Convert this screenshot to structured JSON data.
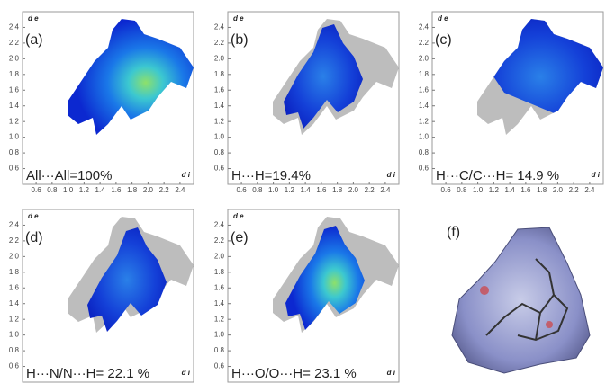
{
  "chart_data": [
    {
      "type": "scatter",
      "label": "(a)",
      "caption": "All···All=100%",
      "ylabel": "d e",
      "xlabel": "d i",
      "xlim": [
        0.43,
        2.57
      ],
      "ylim": [
        0.4,
        2.6
      ],
      "xticks": [
        0.6,
        0.8,
        {
          "value": 1,
          "label": "1.0"
        },
        1.2,
        1.4,
        1.6,
        1.8,
        {
          "value": 2,
          "label": "2.0"
        },
        2.2,
        2.4
      ],
      "yticks": [
        0.6,
        0.8,
        {
          "value": 1,
          "label": "1.0"
        },
        1.2,
        1.4,
        1.6,
        1.8,
        {
          "value": 2,
          "label": "2.0"
        },
        2.2,
        2.4
      ]
    },
    {
      "type": "scatter",
      "label": "(b)",
      "caption": "H···H=19.4%",
      "ylabel": "d e",
      "xlabel": "d i",
      "xlim": [
        0.43,
        2.57
      ],
      "ylim": [
        0.4,
        2.6
      ],
      "xticks": [
        0.6,
        0.8,
        {
          "value": 1,
          "label": "1.0"
        },
        1.2,
        1.4,
        1.6,
        1.8,
        {
          "value": 2,
          "label": "2.0"
        },
        2.2,
        2.4
      ],
      "yticks": [
        0.6,
        0.8,
        {
          "value": 1,
          "label": "1.0"
        },
        1.2,
        1.4,
        1.6,
        1.8,
        {
          "value": 2,
          "label": "2.0"
        },
        2.2,
        2.4
      ]
    },
    {
      "type": "scatter",
      "label": "(c)",
      "caption": "H···C/C···H= 14.9 %",
      "ylabel": "d e",
      "xlabel": "d i",
      "xlim": [
        0.43,
        2.57
      ],
      "ylim": [
        0.4,
        2.6
      ],
      "xticks": [
        0.6,
        0.8,
        {
          "value": 1,
          "label": "1.0"
        },
        1.2,
        1.4,
        1.6,
        1.8,
        {
          "value": 2,
          "label": "2.0"
        },
        2.2,
        2.4
      ],
      "yticks": [
        0.6,
        0.8,
        {
          "value": 1,
          "label": "1.0"
        },
        1.2,
        1.4,
        1.6,
        1.8,
        {
          "value": 2,
          "label": "2.0"
        },
        2.2,
        2.4
      ]
    },
    {
      "type": "scatter",
      "label": "(d)",
      "caption": "H···N/N···H= 22.1 %",
      "ylabel": "d e",
      "xlabel": "d i",
      "ylim": [
        0.4,
        2.6
      ],
      "yticks": [
        0.6,
        0.8,
        {
          "value": 1,
          "label": "1.0"
        },
        1.2,
        1.4,
        1.6,
        1.8,
        {
          "value": 2,
          "label": "2.0"
        },
        2.2,
        2.4
      ]
    },
    {
      "type": "scatter",
      "label": "(e)",
      "caption": "H···O/O···H= 23.1 %",
      "ylabel": "d e",
      "xlabel": "d i",
      "ylim": [
        0.4,
        2.6
      ],
      "yticks": [
        0.6,
        0.8,
        {
          "value": 1,
          "label": "1.0"
        },
        1.2,
        1.4,
        1.6,
        1.8,
        {
          "value": 2,
          "label": "2.0"
        },
        2.2,
        2.4
      ]
    }
  ],
  "panel_f": {
    "label": "(f)"
  }
}
